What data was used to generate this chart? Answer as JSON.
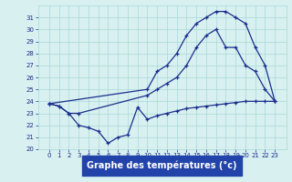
{
  "line_min_x": [
    0,
    1,
    2,
    3,
    4,
    5,
    6,
    7,
    8,
    9,
    10,
    11,
    12,
    13,
    14,
    15,
    16,
    17,
    18,
    19,
    20,
    21,
    22,
    23
  ],
  "line_min_y": [
    23.8,
    23.6,
    23.0,
    22.0,
    21.8,
    21.5,
    20.5,
    21.0,
    21.2,
    23.5,
    22.5,
    22.8,
    23.0,
    23.2,
    23.4,
    23.5,
    23.6,
    23.7,
    23.8,
    23.9,
    24.0,
    24.0,
    24.0,
    24.0
  ],
  "line_mid_x": [
    0,
    1,
    2,
    3,
    10,
    11,
    12,
    13,
    14,
    15,
    16,
    17,
    18,
    19,
    20,
    21,
    22,
    23
  ],
  "line_mid_y": [
    23.8,
    23.6,
    23.0,
    23.0,
    24.5,
    25.0,
    25.5,
    26.0,
    27.0,
    28.5,
    29.5,
    30.0,
    28.5,
    28.5,
    27.0,
    26.5,
    25.0,
    24.0
  ],
  "line_max_x": [
    0,
    10,
    11,
    12,
    13,
    14,
    15,
    16,
    17,
    18,
    19,
    20,
    21,
    22,
    23
  ],
  "line_max_y": [
    23.8,
    25.0,
    26.5,
    27.0,
    28.0,
    29.5,
    30.5,
    31.0,
    31.5,
    31.5,
    31.0,
    30.5,
    28.5,
    27.0,
    24.0
  ],
  "line_color": "#1a2e8c",
  "bg_color": "#d8f0f0",
  "grid_color": "#a8d8d8",
  "xlabel": "Graphe des températures (°c)",
  "xlabel_bg": "#2244aa",
  "xlabel_color": "#ffffff",
  "ylim": [
    20,
    32
  ],
  "yticks": [
    20,
    21,
    22,
    23,
    24,
    25,
    26,
    27,
    28,
    29,
    30,
    31
  ],
  "xticks": [
    0,
    1,
    2,
    3,
    4,
    5,
    6,
    7,
    8,
    9,
    10,
    11,
    12,
    13,
    14,
    15,
    16,
    17,
    18,
    19,
    20,
    21,
    22,
    23
  ],
  "tick_fontsize": 5.0,
  "xlabel_fontsize": 7.0,
  "marker": "+",
  "markersize": 3.5,
  "linewidth": 0.9
}
